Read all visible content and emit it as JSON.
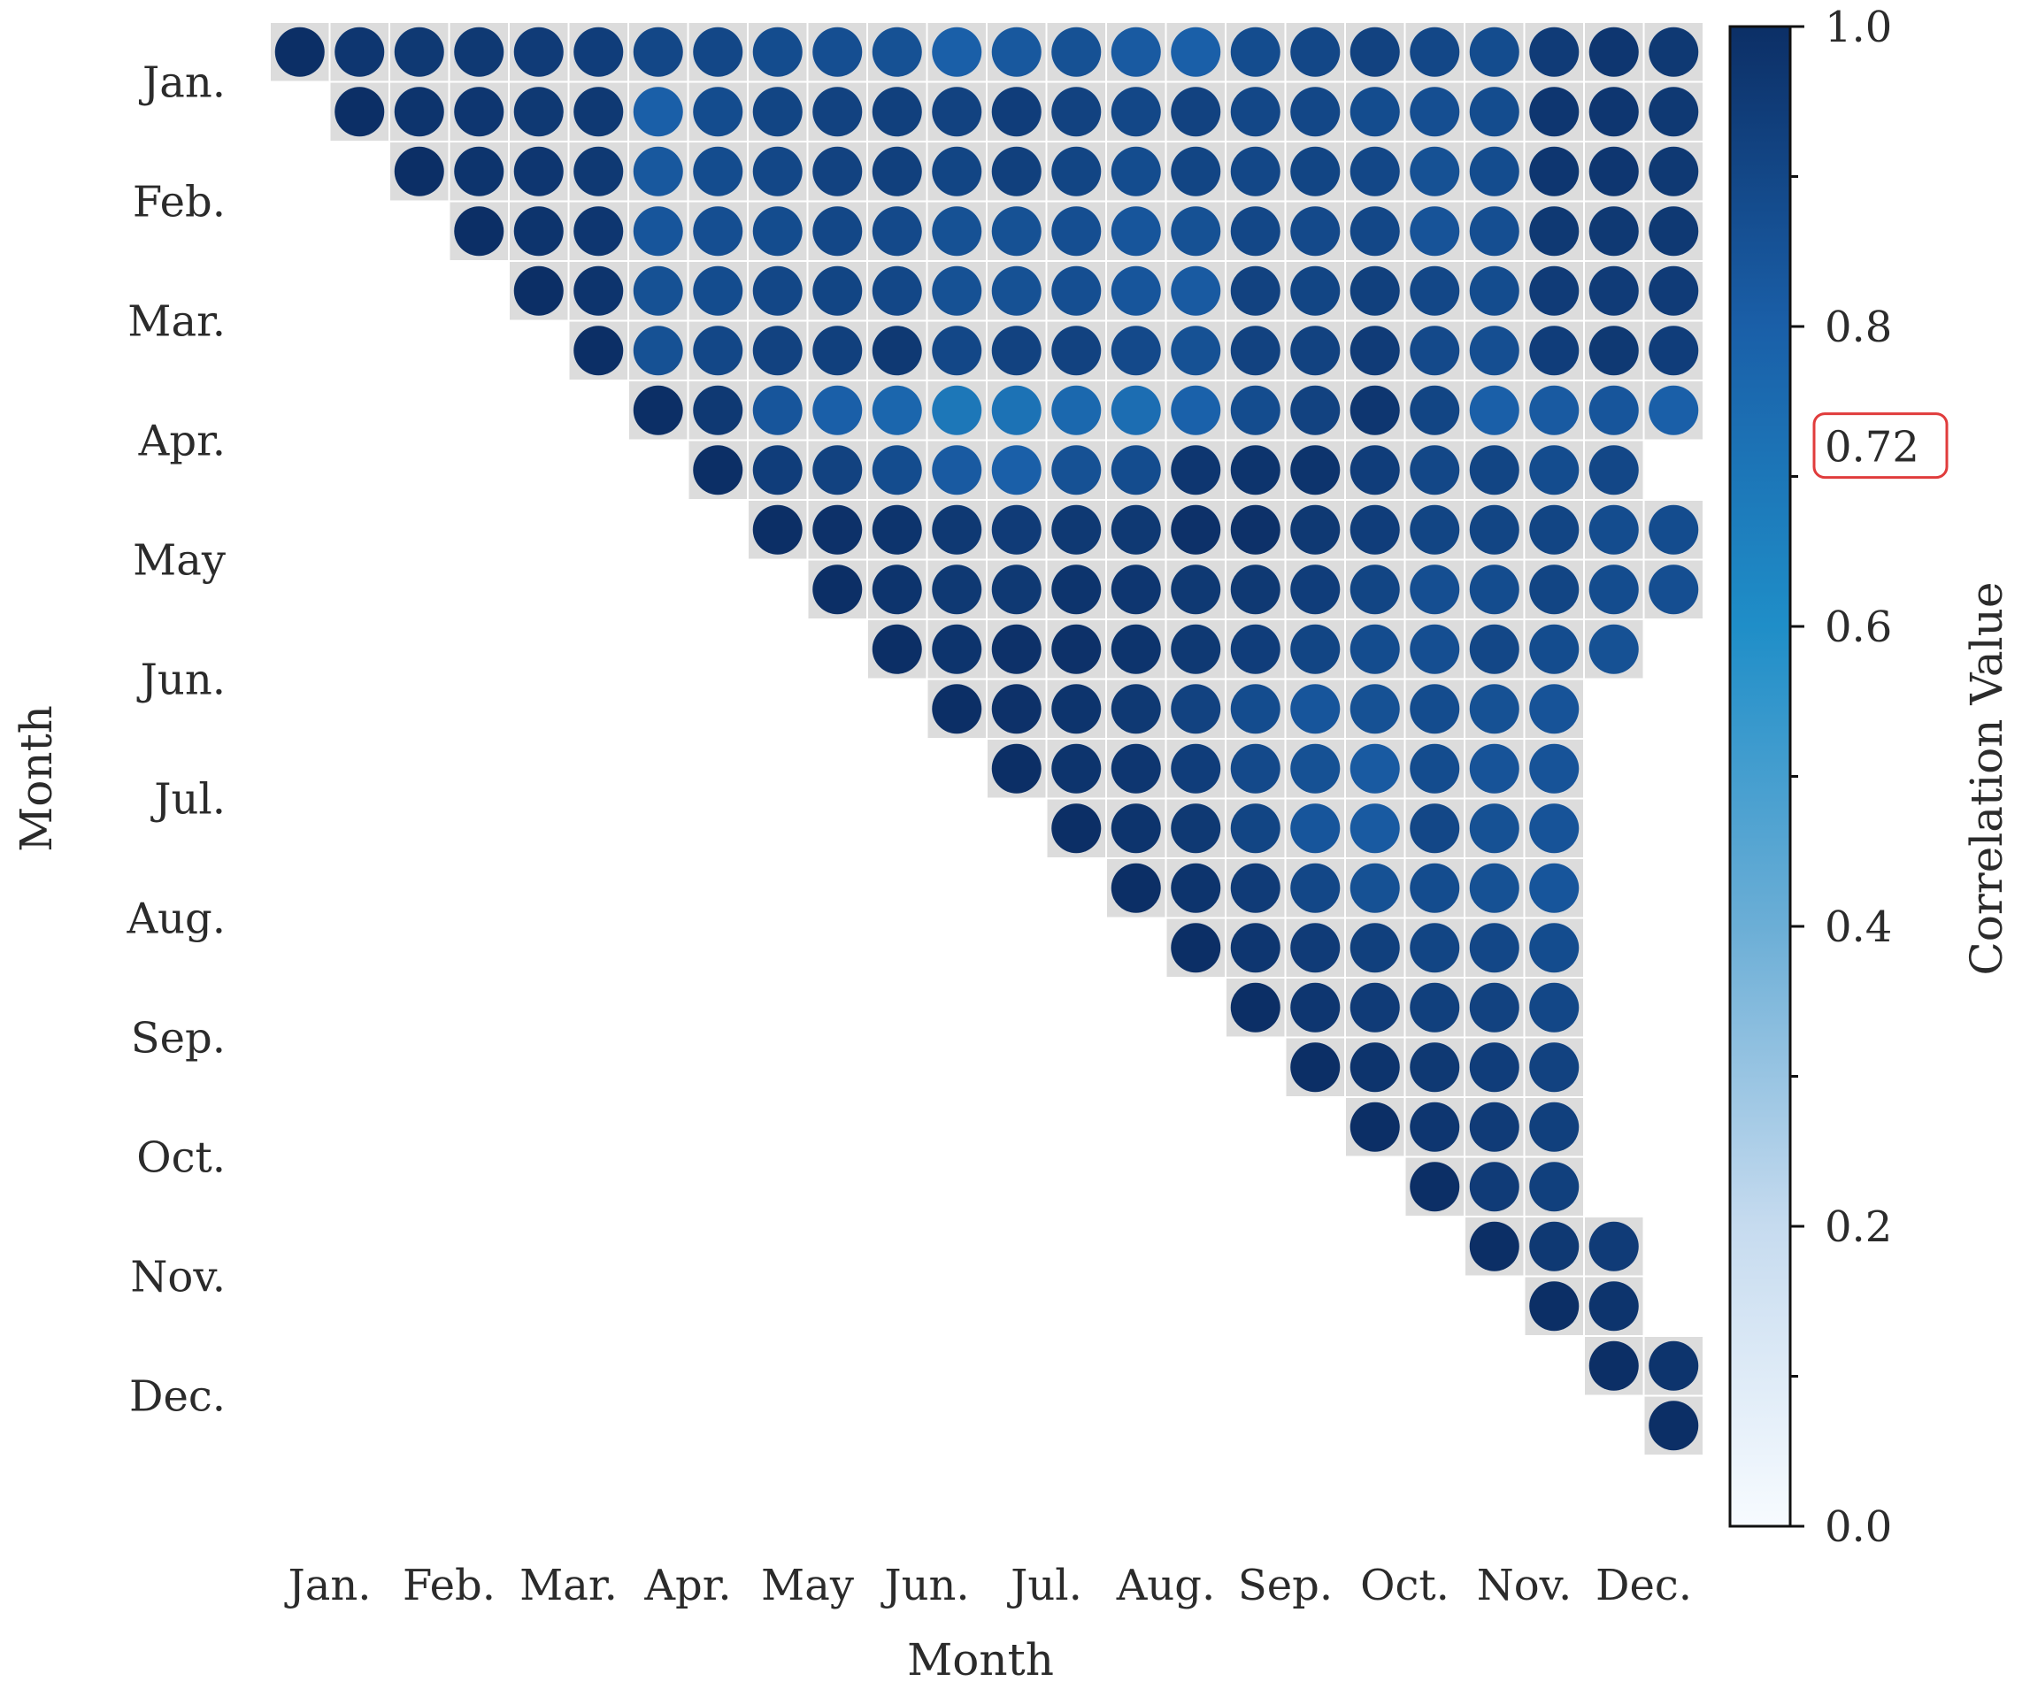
{
  "chart_data": {
    "type": "heatmap",
    "x_categories": [
      "Jan.",
      "Feb.",
      "Mar.",
      "Apr.",
      "May",
      "Jun.",
      "Jul.",
      "Aug.",
      "Sep.",
      "Oct.",
      "Nov.",
      "Dec."
    ],
    "y_categories": [
      "Jan.",
      "Feb.",
      "Mar.",
      "Apr.",
      "May",
      "Jun.",
      "Jul.",
      "Aug.",
      "Sep.",
      "Oct.",
      "Nov.",
      "Dec."
    ],
    "xlabel": "Month",
    "ylabel": "Month",
    "grid_size": 24,
    "layout": "upper-triangle",
    "marker": "circle",
    "values": [
      [
        1.0,
        0.97,
        0.96,
        0.96,
        0.95,
        0.94,
        0.9,
        0.9,
        0.88,
        0.87,
        0.86,
        0.8,
        0.83,
        0.86,
        0.82,
        0.8,
        0.88,
        0.9,
        0.92,
        0.9,
        0.88,
        0.95,
        0.97,
        0.96
      ],
      [
        1.0,
        0.98,
        0.97,
        0.96,
        0.96,
        0.8,
        0.88,
        0.91,
        0.92,
        0.93,
        0.92,
        0.94,
        0.92,
        0.9,
        0.92,
        0.9,
        0.9,
        0.88,
        0.87,
        0.88,
        0.97,
        0.97,
        0.96
      ],
      [
        1.0,
        0.98,
        0.97,
        0.96,
        0.83,
        0.88,
        0.9,
        0.92,
        0.93,
        0.91,
        0.93,
        0.91,
        0.88,
        0.91,
        0.9,
        0.91,
        0.9,
        0.86,
        0.88,
        0.97,
        0.97,
        0.96
      ],
      [
        1.0,
        0.98,
        0.97,
        0.84,
        0.87,
        0.88,
        0.9,
        0.89,
        0.86,
        0.86,
        0.87,
        0.84,
        0.86,
        0.9,
        0.89,
        0.9,
        0.85,
        0.87,
        0.96,
        0.96,
        0.96
      ],
      [
        1.0,
        0.98,
        0.86,
        0.88,
        0.9,
        0.91,
        0.9,
        0.86,
        0.86,
        0.87,
        0.84,
        0.82,
        0.92,
        0.91,
        0.93,
        0.9,
        0.88,
        0.95,
        0.95,
        0.95
      ],
      [
        1.0,
        0.86,
        0.9,
        0.92,
        0.93,
        0.96,
        0.9,
        0.92,
        0.92,
        0.89,
        0.86,
        0.92,
        0.92,
        0.95,
        0.89,
        0.87,
        0.94,
        0.96,
        0.94
      ],
      [
        1.0,
        0.96,
        0.84,
        0.8,
        0.77,
        0.7,
        0.72,
        0.76,
        0.74,
        0.79,
        0.88,
        0.92,
        0.97,
        0.91,
        0.8,
        0.82,
        0.84,
        0.8
      ],
      [
        1.0,
        0.94,
        0.92,
        0.88,
        0.82,
        0.8,
        0.86,
        0.88,
        0.97,
        0.98,
        0.98,
        0.94,
        0.9,
        0.91,
        0.88,
        0.9
      ],
      [
        1.0,
        0.99,
        0.98,
        0.96,
        0.95,
        0.96,
        0.96,
        0.99,
        0.99,
        0.96,
        0.94,
        0.91,
        0.91,
        0.91,
        0.88,
        0.88
      ],
      [
        1.0,
        0.98,
        0.96,
        0.96,
        0.98,
        0.97,
        0.96,
        0.96,
        0.94,
        0.91,
        0.87,
        0.88,
        0.91,
        0.88,
        0.87
      ],
      [
        1.0,
        0.98,
        0.99,
        0.99,
        0.98,
        0.96,
        0.94,
        0.91,
        0.88,
        0.87,
        0.9,
        0.88,
        0.86
      ],
      [
        1.0,
        0.99,
        0.98,
        0.96,
        0.92,
        0.88,
        0.84,
        0.86,
        0.88,
        0.86,
        0.85
      ],
      [
        1.0,
        0.98,
        0.97,
        0.94,
        0.89,
        0.86,
        0.82,
        0.88,
        0.85,
        0.85
      ],
      [
        1.0,
        0.98,
        0.96,
        0.91,
        0.84,
        0.82,
        0.9,
        0.86,
        0.85
      ],
      [
        1.0,
        0.98,
        0.95,
        0.9,
        0.86,
        0.88,
        0.86,
        0.84
      ],
      [
        1.0,
        0.97,
        0.95,
        0.93,
        0.91,
        0.9,
        0.88
      ],
      [
        1.0,
        0.97,
        0.95,
        0.93,
        0.92,
        0.9
      ],
      [
        1.0,
        0.98,
        0.96,
        0.94,
        0.92
      ],
      [
        1.0,
        0.97,
        0.95,
        0.93
      ],
      [
        1.0,
        0.95,
        0.93
      ],
      [
        1.0,
        0.96,
        0.95
      ],
      [
        1.0,
        0.98
      ],
      [
        1.0,
        0.98
      ],
      [
        1.0
      ]
    ],
    "colorbar": {
      "label": "Correlation Value",
      "range": [
        0.0,
        1.0
      ],
      "ticks": [
        "0.0",
        "0.2",
        "0.4",
        "0.6",
        "0.8",
        "1.0"
      ],
      "highlight": {
        "value": 0.72,
        "label": "0.72",
        "color": "#e03c3c"
      },
      "colors": [
        "#f7fbff",
        "#c6dbef",
        "#6baed6",
        "#1f8ec8",
        "#1a5fa8",
        "#0c2f66"
      ]
    },
    "grid": "off",
    "legend": "colorbar-right"
  }
}
